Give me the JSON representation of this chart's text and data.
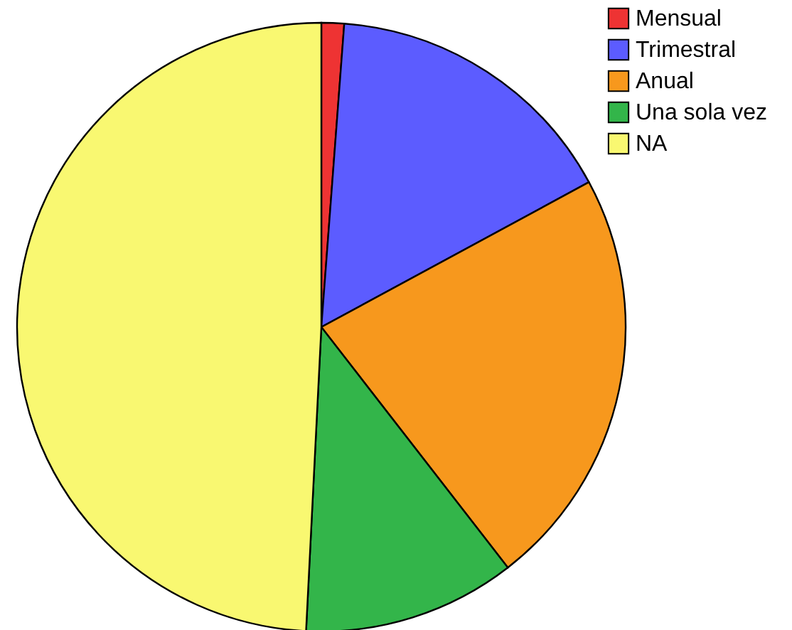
{
  "chart_data": {
    "type": "pie",
    "categories": [
      "Mensual",
      "Trimestral",
      "Anual",
      "Una sola vez",
      "NA"
    ],
    "values": [
      1.2,
      15.9,
      22.4,
      11.3,
      49.2
    ],
    "colors": [
      "#ee3333",
      "#5c5cff",
      "#f7981d",
      "#33b54a",
      "#f9f871"
    ],
    "legend": "top right"
  }
}
